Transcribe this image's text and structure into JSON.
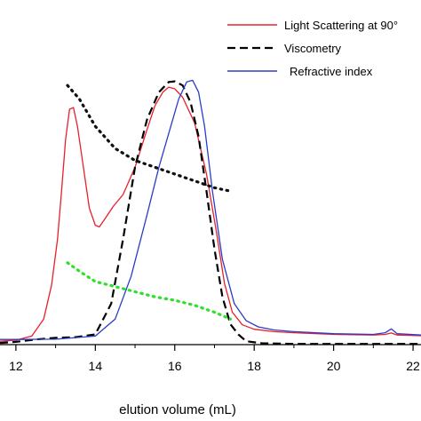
{
  "chart_data": {
    "type": "line",
    "xlabel": "elution volume (mL)",
    "ylabel": "",
    "xlim": [
      11.6,
      22.2
    ],
    "ylim": [
      0.0,
      1.0
    ],
    "x_ticks": [
      "12",
      "14",
      "16",
      "18",
      "20",
      "22"
    ],
    "legend_position": "top-right",
    "grid": false,
    "series": [
      {
        "name": "Light Scattering at 90°",
        "color": "#e8202a",
        "style": "solid",
        "x": [
          11.6,
          12.0,
          12.4,
          12.7,
          12.9,
          13.05,
          13.15,
          13.25,
          13.35,
          13.45,
          13.55,
          13.7,
          13.85,
          14.0,
          14.1,
          14.25,
          14.45,
          14.7,
          15.0,
          15.3,
          15.5,
          15.7,
          15.85,
          16.0,
          16.2,
          16.5,
          16.8,
          17.05,
          17.25,
          17.45,
          17.7,
          18.0,
          18.5,
          19.0,
          20.0,
          21.0,
          21.3,
          21.45,
          21.6,
          22.2
        ],
        "y": [
          0.01,
          0.013,
          0.025,
          0.075,
          0.175,
          0.31,
          0.45,
          0.6,
          0.69,
          0.695,
          0.64,
          0.52,
          0.4,
          0.35,
          0.345,
          0.37,
          0.405,
          0.44,
          0.52,
          0.63,
          0.7,
          0.74,
          0.755,
          0.75,
          0.725,
          0.65,
          0.5,
          0.33,
          0.18,
          0.095,
          0.058,
          0.045,
          0.038,
          0.035,
          0.03,
          0.028,
          0.03,
          0.034,
          0.028,
          0.026
        ]
      },
      {
        "name": "Viscometry",
        "color": "#000000",
        "style": "dashed",
        "x": [
          11.6,
          12.0,
          12.5,
          13.0,
          13.5,
          14.0,
          14.4,
          14.7,
          15.0,
          15.3,
          15.6,
          15.85,
          16.0,
          16.2,
          16.4,
          16.6,
          16.8,
          17.0,
          17.2,
          17.4,
          17.6,
          17.8,
          18.2,
          19.0,
          20.0,
          21.0,
          22.2
        ],
        "y": [
          0.005,
          0.008,
          0.015,
          0.02,
          0.022,
          0.03,
          0.12,
          0.31,
          0.52,
          0.66,
          0.74,
          0.77,
          0.772,
          0.76,
          0.71,
          0.61,
          0.45,
          0.28,
          0.14,
          0.06,
          0.03,
          0.01,
          0.004,
          0.002,
          0.002,
          0.002,
          0.002
        ]
      },
      {
        "name": "Refractive index",
        "color": "#2a3cc8",
        "style": "solid",
        "x": [
          11.6,
          12.0,
          13.0,
          14.0,
          14.5,
          14.9,
          15.3,
          15.6,
          15.9,
          16.1,
          16.3,
          16.45,
          16.6,
          16.75,
          16.95,
          17.2,
          17.5,
          17.8,
          18.1,
          18.5,
          19.0,
          20.0,
          21.0,
          21.3,
          21.45,
          21.6,
          22.2
        ],
        "y": [
          0.015,
          0.015,
          0.016,
          0.025,
          0.075,
          0.2,
          0.38,
          0.52,
          0.64,
          0.72,
          0.77,
          0.775,
          0.74,
          0.64,
          0.45,
          0.25,
          0.12,
          0.07,
          0.052,
          0.043,
          0.038,
          0.032,
          0.03,
          0.035,
          0.046,
          0.032,
          0.028
        ]
      },
      {
        "name": "",
        "color": "#111111",
        "style": "dotted",
        "x": [
          13.3,
          13.6,
          14.0,
          14.5,
          15.0,
          15.5,
          16.0,
          16.5,
          17.0,
          17.4
        ],
        "y": [
          0.76,
          0.72,
          0.64,
          0.575,
          0.54,
          0.52,
          0.5,
          0.48,
          0.46,
          0.45
        ]
      },
      {
        "name": "",
        "color": "#2ee02a",
        "style": "dotted",
        "x": [
          13.3,
          13.6,
          14.0,
          14.5,
          15.0,
          15.5,
          16.0,
          16.5,
          17.0,
          17.4
        ],
        "y": [
          0.24,
          0.215,
          0.185,
          0.17,
          0.155,
          0.14,
          0.13,
          0.115,
          0.095,
          0.075
        ]
      }
    ]
  }
}
